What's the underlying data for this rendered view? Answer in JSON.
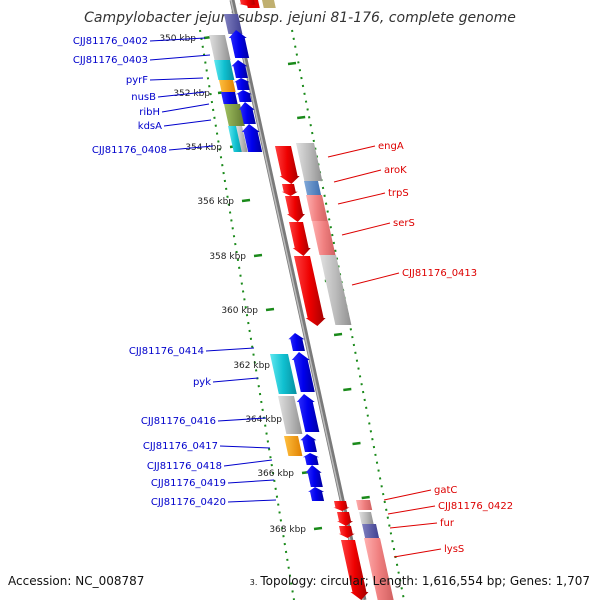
{
  "title": "Campylobacter jejuni subsp. jejuni 81-176, complete genome",
  "footer": {
    "accession": "Accession: NC_008787",
    "summary": "Topology: circular; Length: 1,616,554 bp; Genes: 1,707"
  },
  "colors": {
    "forward_label": "#0000cc",
    "reverse_label": "#dd0000",
    "backbone": "#8c8c8c",
    "ruler": "#1a8a1a"
  },
  "ticks": [
    {
      "label": "350 kbp",
      "side": "left"
    },
    {
      "label": "352 kbp",
      "side": "left"
    },
    {
      "label": "354 kbp",
      "side": "left"
    },
    {
      "label": "356 kbp",
      "side": "left"
    },
    {
      "label": "358 kbp",
      "side": "left"
    },
    {
      "label": "360 kbp",
      "side": "left"
    },
    {
      "label": "362 kbp",
      "side": "left"
    },
    {
      "label": "364 kbp",
      "side": "left"
    },
    {
      "label": "366 kbp",
      "side": "left"
    },
    {
      "label": "368 kbp",
      "side": "left"
    }
  ],
  "forward_genes": [
    {
      "name": "CJJ81176_0402"
    },
    {
      "name": "CJJ81176_0403"
    },
    {
      "name": "pyrF"
    },
    {
      "name": "nusB"
    },
    {
      "name": "ribH"
    },
    {
      "name": "kdsA"
    },
    {
      "name": "CJJ81176_0408"
    },
    {
      "name": "CJJ81176_0414"
    },
    {
      "name": "pyk"
    },
    {
      "name": "CJJ81176_0416"
    },
    {
      "name": "CJJ81176_0417"
    },
    {
      "name": "CJJ81176_0418"
    },
    {
      "name": "CJJ81176_0419"
    },
    {
      "name": "CJJ81176_0420"
    }
  ],
  "reverse_genes": [
    {
      "name": "engA"
    },
    {
      "name": "aroK"
    },
    {
      "name": "trpS"
    },
    {
      "name": "serS"
    },
    {
      "name": "CJJ81176_0413"
    },
    {
      "name": "gatC"
    },
    {
      "name": "CJJ81176_0422"
    },
    {
      "name": "fur"
    },
    {
      "name": "lysS"
    }
  ],
  "partial_label": "3."
}
